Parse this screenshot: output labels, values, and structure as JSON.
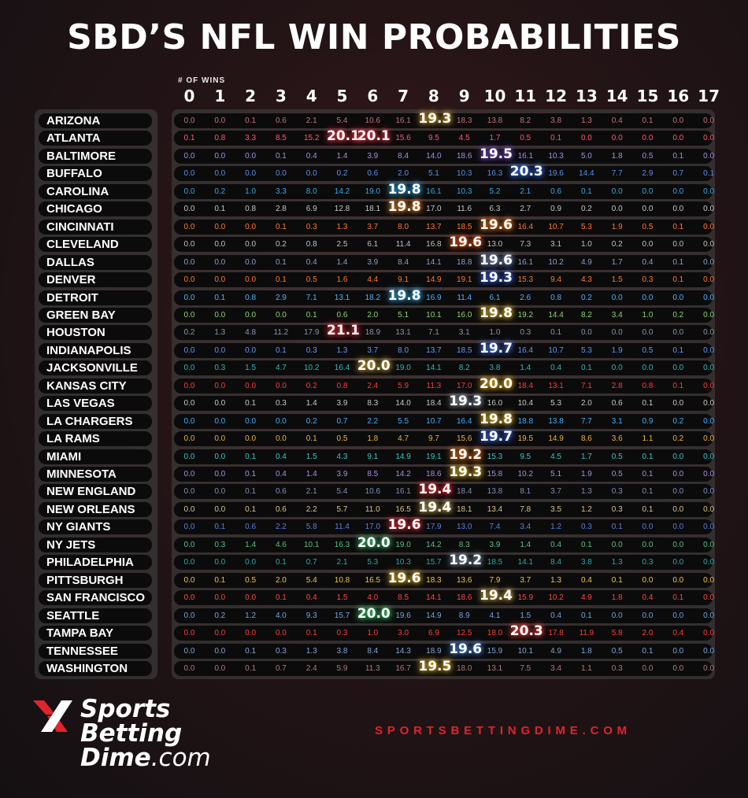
{
  "title": "SBD’S NFL WIN PROBABILITIES",
  "logo": {
    "line1": "Sports",
    "line2": "Betting",
    "line3a": "Dime",
    "line3b": ".com"
  },
  "website": "SPORTSBETTINGDIME.COM",
  "chart_data": {
    "type": "table",
    "title": "SBD’S NFL WIN PROBABILITIES",
    "xlabel": "# OF WINS",
    "columns": [
      "0",
      "1",
      "2",
      "3",
      "4",
      "5",
      "6",
      "7",
      "8",
      "9",
      "10",
      "11",
      "12",
      "13",
      "14",
      "15",
      "16",
      "17"
    ],
    "teams": [
      {
        "name": "ARIZONA",
        "color": "#c9707a",
        "values": [
          0.0,
          0.0,
          0.1,
          0.6,
          2.1,
          5.4,
          10.6,
          16.1,
          19.3,
          18.3,
          13.8,
          8.2,
          3.8,
          1.3,
          0.4,
          0.1,
          0.0,
          0.0
        ]
      },
      {
        "name": "ATLANTA",
        "color": "#ff5a6c",
        "values": [
          0.1,
          0.8,
          3.3,
          8.5,
          15.2,
          20.1,
          20.1,
          15.6,
          9.5,
          4.5,
          1.7,
          0.5,
          0.1,
          0.0,
          0.0,
          0.0,
          0.0,
          0.0
        ]
      },
      {
        "name": "BALTIMORE",
        "color": "#a58ee0",
        "values": [
          0.0,
          0.0,
          0.0,
          0.1,
          0.4,
          1.4,
          3.9,
          8.4,
          14.0,
          18.6,
          19.5,
          16.1,
          10.3,
          5.0,
          1.8,
          0.5,
          0.1,
          0.0
        ]
      },
      {
        "name": "BUFFALO",
        "color": "#5a8fe6",
        "values": [
          0.0,
          0.0,
          0.0,
          0.0,
          0.0,
          0.2,
          0.6,
          2.0,
          5.1,
          10.3,
          16.3,
          20.3,
          19.6,
          14.4,
          7.7,
          2.9,
          0.7,
          0.1
        ]
      },
      {
        "name": "CAROLINA",
        "color": "#36a9e6",
        "values": [
          0.0,
          0.2,
          1.0,
          3.3,
          8.0,
          14.2,
          19.0,
          19.8,
          16.1,
          10.3,
          5.2,
          2.1,
          0.6,
          0.1,
          0.0,
          0.0,
          0.0,
          0.0
        ]
      },
      {
        "name": "CHICAGO",
        "color": "#c7c7c7",
        "values": [
          0.0,
          0.1,
          0.8,
          2.8,
          6.9,
          12.8,
          18.1,
          19.8,
          17.0,
          11.6,
          6.3,
          2.7,
          0.9,
          0.2,
          0.0,
          0.0,
          0.0,
          0.0
        ]
      },
      {
        "name": "CINCINNATI",
        "color": "#ff7a2e",
        "values": [
          0.0,
          0.0,
          0.0,
          0.1,
          0.3,
          1.3,
          3.7,
          8.0,
          13.7,
          18.5,
          19.6,
          16.4,
          10.7,
          5.3,
          1.9,
          0.5,
          0.1,
          0.0
        ]
      },
      {
        "name": "CLEVELAND",
        "color": "#c0c0c0",
        "values": [
          0.0,
          0.0,
          0.0,
          0.2,
          0.8,
          2.5,
          6.1,
          11.4,
          16.8,
          19.6,
          13.0,
          7.3,
          3.1,
          1.0,
          0.2,
          0.0,
          0.0,
          0.0
        ]
      },
      {
        "name": "DALLAS",
        "color": "#8aa0c8",
        "values": [
          0.0,
          0.0,
          0.0,
          0.1,
          0.4,
          1.4,
          3.9,
          8.4,
          14.1,
          18.8,
          19.6,
          16.1,
          10.2,
          4.9,
          1.7,
          0.4,
          0.1,
          0.0
        ]
      },
      {
        "name": "DENVER",
        "color": "#ff7a2e",
        "values": [
          0.0,
          0.0,
          0.0,
          0.1,
          0.5,
          1.6,
          4.4,
          9.1,
          14.9,
          19.1,
          19.3,
          15.3,
          9.4,
          4.3,
          1.5,
          0.3,
          0.1,
          0.0
        ]
      },
      {
        "name": "DETROIT",
        "color": "#4fb3ff",
        "values": [
          0.0,
          0.1,
          0.8,
          2.9,
          7.1,
          13.1,
          18.2,
          19.8,
          16.9,
          11.4,
          6.1,
          2.6,
          0.8,
          0.2,
          0.0,
          0.0,
          0.0,
          0.0
        ]
      },
      {
        "name": "GREEN BAY",
        "color": "#8ed36a",
        "values": [
          0.0,
          0.0,
          0.0,
          0.0,
          0.1,
          0.6,
          2.0,
          5.1,
          10.1,
          16.0,
          19.8,
          19.2,
          14.4,
          8.2,
          3.4,
          1.0,
          0.2,
          0.0
        ]
      },
      {
        "name": "HOUSTON",
        "color": "#8b95a8",
        "values": [
          0.2,
          1.3,
          4.8,
          11.2,
          17.9,
          21.1,
          18.9,
          13.1,
          7.1,
          3.1,
          1.0,
          0.3,
          0.1,
          0.0,
          0.0,
          0.0,
          0.0,
          0.0
        ]
      },
      {
        "name": "INDIANAPOLIS",
        "color": "#5f97ff",
        "values": [
          0.0,
          0.0,
          0.0,
          0.1,
          0.3,
          1.3,
          3.7,
          8.0,
          13.7,
          18.5,
          19.7,
          16.4,
          10.7,
          5.3,
          1.9,
          0.5,
          0.1,
          0.0
        ]
      },
      {
        "name": "JACKSONVILLE",
        "color": "#37b5b8",
        "values": [
          0.0,
          0.3,
          1.5,
          4.7,
          10.2,
          16.4,
          20.0,
          19.0,
          14.1,
          8.2,
          3.8,
          1.4,
          0.4,
          0.1,
          0.0,
          0.0,
          0.0,
          0.0
        ]
      },
      {
        "name": "KANSAS CITY",
        "color": "#ff3b3b",
        "values": [
          0.0,
          0.0,
          0.0,
          0.0,
          0.2,
          0.8,
          2.4,
          5.9,
          11.3,
          17.0,
          20.0,
          18.4,
          13.1,
          7.1,
          2.8,
          0.8,
          0.1,
          0.0
        ]
      },
      {
        "name": "LAS VEGAS",
        "color": "#c8c8c8",
        "values": [
          0.0,
          0.0,
          0.1,
          0.3,
          1.4,
          3.9,
          8.3,
          14.0,
          18.4,
          19.3,
          16.0,
          10.4,
          5.3,
          2.0,
          0.6,
          0.1,
          0.0,
          0.0
        ]
      },
      {
        "name": "LA CHARGERS",
        "color": "#3fb0ff",
        "values": [
          0.0,
          0.0,
          0.0,
          0.0,
          0.2,
          0.7,
          2.2,
          5.5,
          10.7,
          16.4,
          19.8,
          18.8,
          13.8,
          7.7,
          3.1,
          0.9,
          0.2,
          0.0
        ]
      },
      {
        "name": "LA RAMS",
        "color": "#f2b23a",
        "values": [
          0.0,
          0.0,
          0.0,
          0.0,
          0.1,
          0.5,
          1.8,
          4.7,
          9.7,
          15.6,
          19.7,
          19.5,
          14.9,
          8.6,
          3.6,
          1.1,
          0.2,
          0.0
        ]
      },
      {
        "name": "MIAMI",
        "color": "#35c9c9",
        "values": [
          0.0,
          0.0,
          0.1,
          0.4,
          1.5,
          4.3,
          9.1,
          14.9,
          19.1,
          19.2,
          15.3,
          9.5,
          4.5,
          1.7,
          0.5,
          0.1,
          0.0,
          0.0
        ]
      },
      {
        "name": "MINNESOTA",
        "color": "#b08ae0",
        "values": [
          0.0,
          0.0,
          0.1,
          0.4,
          1.4,
          3.9,
          8.5,
          14.2,
          18.6,
          19.3,
          15.8,
          10.2,
          5.1,
          1.9,
          0.5,
          0.1,
          0.0,
          0.0
        ]
      },
      {
        "name": "NEW ENGLAND",
        "color": "#7b90b8",
        "values": [
          0.0,
          0.0,
          0.1,
          0.6,
          2.1,
          5.4,
          10.6,
          16.1,
          19.4,
          18.4,
          13.8,
          8.1,
          3.7,
          1.3,
          0.3,
          0.1,
          0.0,
          0.0
        ]
      },
      {
        "name": "NEW ORLEANS",
        "color": "#d8c38a",
        "values": [
          0.0,
          0.0,
          0.1,
          0.6,
          2.2,
          5.7,
          11.0,
          16.5,
          19.4,
          18.1,
          13.4,
          7.8,
          3.5,
          1.2,
          0.3,
          0.1,
          0.0,
          0.0
        ]
      },
      {
        "name": "NY GIANTS",
        "color": "#5a7fe0",
        "values": [
          0.0,
          0.1,
          0.6,
          2.2,
          5.8,
          11.4,
          17.0,
          19.6,
          17.9,
          13.0,
          7.4,
          3.4,
          1.2,
          0.3,
          0.1,
          0.0,
          0.0,
          0.0
        ]
      },
      {
        "name": "NY JETS",
        "color": "#5bc08a",
        "values": [
          0.0,
          0.3,
          1.4,
          4.6,
          10.1,
          16.3,
          20.0,
          19.0,
          14.2,
          8.3,
          3.9,
          1.4,
          0.4,
          0.1,
          0.0,
          0.0,
          0.0,
          0.0
        ]
      },
      {
        "name": "PHILADELPHIA",
        "color": "#2fa7a8",
        "values": [
          0.0,
          0.0,
          0.0,
          0.1,
          0.7,
          2.1,
          5.3,
          10.3,
          15.7,
          19.2,
          18.5,
          14.1,
          8.4,
          3.8,
          1.3,
          0.3,
          0.0,
          0.0
        ]
      },
      {
        "name": "PITTSBURGH",
        "color": "#f5c542",
        "values": [
          0.0,
          0.1,
          0.5,
          2.0,
          5.4,
          10.8,
          16.5,
          19.6,
          18.3,
          13.6,
          7.9,
          3.7,
          1.3,
          0.4,
          0.1,
          0.0,
          0.0,
          0.0
        ]
      },
      {
        "name": "SAN FRANCISCO",
        "color": "#ff4747",
        "values": [
          0.0,
          0.0,
          0.0,
          0.1,
          0.4,
          1.5,
          4.0,
          8.5,
          14.1,
          18.6,
          19.4,
          15.9,
          10.2,
          4.9,
          1.8,
          0.4,
          0.1,
          0.0
        ]
      },
      {
        "name": "SEATTLE",
        "color": "#6aa8e6",
        "values": [
          0.0,
          0.2,
          1.2,
          4.0,
          9.3,
          15.7,
          20.0,
          19.6,
          14.9,
          8.9,
          4.1,
          1.5,
          0.4,
          0.1,
          0.0,
          0.0,
          0.0,
          0.0
        ]
      },
      {
        "name": "TAMPA BAY",
        "color": "#ff3b3b",
        "values": [
          0.0,
          0.0,
          0.0,
          0.0,
          0.1,
          0.3,
          1.0,
          3.0,
          6.9,
          12.5,
          18.0,
          20.3,
          17.8,
          11.9,
          5.8,
          2.0,
          0.4,
          0.0
        ]
      },
      {
        "name": "TENNESSEE",
        "color": "#7fa6d6",
        "values": [
          0.0,
          0.0,
          0.1,
          0.3,
          1.3,
          3.8,
          8.4,
          14.3,
          18.9,
          19.6,
          15.9,
          10.1,
          4.9,
          1.8,
          0.5,
          0.1,
          0.0,
          0.0
        ]
      },
      {
        "name": "WASHINGTON",
        "color": "#b57a7a",
        "values": [
          0.0,
          0.0,
          0.1,
          0.7,
          2.4,
          5.9,
          11.3,
          16.7,
          19.5,
          18.0,
          13.1,
          7.5,
          3.4,
          1.1,
          0.3,
          0.0,
          0.0,
          0.0
        ]
      }
    ],
    "highlight_colors": {
      "ARIZONA": "#f0b23a",
      "ATLANTA": "#ff3a4a",
      "BALTIMORE": "#7e4fd8",
      "BUFFALO": "#3b78ff",
      "CAROLINA": "#2fb0ff",
      "CHICAGO": "#ff8c2a",
      "CINCINNATI": "#ff7a1a",
      "CLEVELAND": "#ff5a1a",
      "DALLAS": "#8aa0d0",
      "DENVER": "#3a68ff",
      "DETROIT": "#3fb6ff",
      "GREEN BAY": "#f0c030",
      "HOUSTON": "#ff2f3f",
      "INDIANAPOLIS": "#4a7dff",
      "JACKSONVILLE": "#d8b040",
      "KANSAS CITY": "#f5b520",
      "LAS VEGAS": "#a0a8b8",
      "LA CHARGERS": "#f5c530",
      "LA RAMS": "#3f6fff",
      "MIAMI": "#ff7a20",
      "MINNESOTA": "#f5c030",
      "NEW ENGLAND": "#ff3040",
      "NEW ORLEANS": "#d8b860",
      "NY GIANTS": "#ff3040",
      "NY JETS": "#40c070",
      "PHILADELPHIA": "#8aa0b8",
      "PITTSBURGH": "#f5c030",
      "SAN FRANCISCO": "#d8b050",
      "SEATTLE": "#3fd070",
      "TAMPA BAY": "#ff4040",
      "TENNESSEE": "#4a90ff",
      "WASHINGTON": "#f5c030"
    }
  }
}
